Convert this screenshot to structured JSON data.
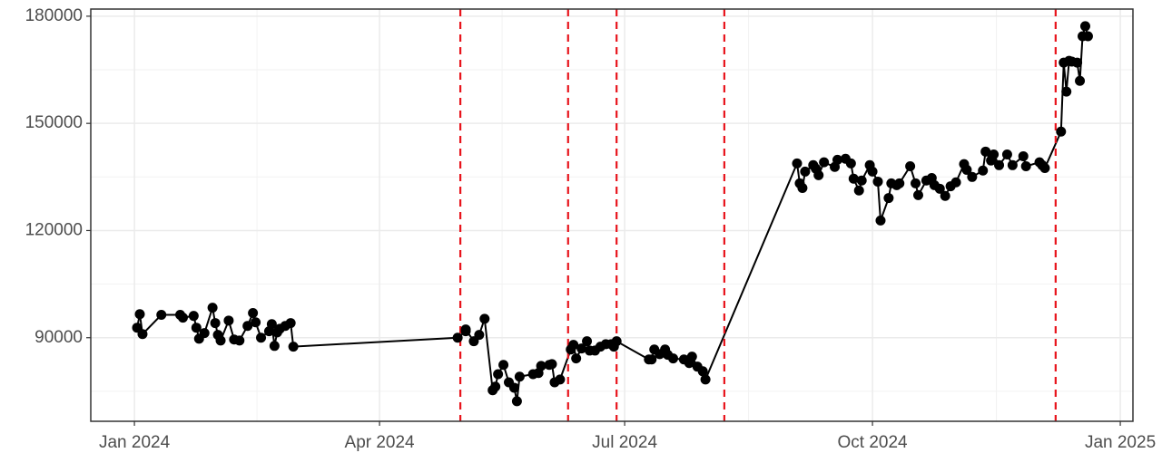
{
  "chart_data": {
    "type": "line",
    "x": [
      1,
      2,
      3,
      10,
      17,
      18,
      22,
      23,
      24,
      26,
      29,
      30,
      31,
      32,
      35,
      37,
      39,
      42,
      44,
      45,
      47,
      50,
      51,
      52,
      53,
      54,
      56,
      58,
      59,
      120,
      123,
      123,
      126,
      128,
      130,
      133,
      134,
      135,
      137,
      139,
      141,
      142,
      143,
      148,
      150,
      151,
      154,
      155,
      156,
      158,
      162,
      163,
      164,
      166,
      168,
      169,
      171,
      173,
      175,
      177,
      178,
      179,
      191,
      192,
      193,
      195,
      197,
      198,
      200,
      204,
      206,
      207,
      209,
      211,
      212,
      246,
      247,
      248,
      249,
      252,
      253,
      254,
      256,
      260,
      261,
      264,
      266,
      267,
      269,
      270,
      273,
      274,
      276,
      277,
      280,
      281,
      283,
      284,
      288,
      290,
      291,
      294,
      296,
      297,
      299,
      301,
      303,
      305,
      308,
      309,
      311,
      315,
      316,
      318,
      319,
      321,
      324,
      326,
      330,
      331,
      336,
      337,
      338,
      344,
      345,
      346,
      347,
      348,
      350,
      351,
      352,
      353,
      354
    ],
    "values": [
      92800,
      96600,
      91000,
      96400,
      96400,
      95600,
      96100,
      92800,
      89700,
      91300,
      98400,
      94100,
      90800,
      89200,
      94800,
      89500,
      89200,
      93300,
      96900,
      94300,
      90000,
      91800,
      93800,
      87700,
      91500,
      92500,
      93300,
      94100,
      87500,
      90000,
      91800,
      92300,
      89000,
      90800,
      95300,
      75300,
      76300,
      79800,
      82400,
      77500,
      76000,
      72200,
      79100,
      79800,
      80100,
      82100,
      82400,
      82600,
      77500,
      78300,
      86700,
      88000,
      84200,
      87000,
      89000,
      86400,
      86400,
      87500,
      88200,
      88200,
      87500,
      89000,
      83900,
      83900,
      86700,
      85400,
      86700,
      85200,
      84200,
      83900,
      82900,
      84700,
      81900,
      80600,
      78300,
      138800,
      133200,
      131900,
      136500,
      138300,
      137300,
      135500,
      139100,
      137800,
      139800,
      140100,
      138800,
      134500,
      131200,
      134000,
      138300,
      136500,
      133700,
      122800,
      129100,
      133200,
      132700,
      133200,
      138000,
      133200,
      129900,
      134000,
      134700,
      132700,
      131700,
      129700,
      132400,
      133500,
      138600,
      137000,
      135000,
      136800,
      142100,
      139600,
      141300,
      138300,
      141300,
      138300,
      140800,
      138000,
      139100,
      138300,
      137500,
      147700,
      167000,
      158900,
      167500,
      167300,
      167000,
      161900,
      174400,
      177200,
      174400
    ],
    "color": "#000000",
    "vlines": [
      121,
      161,
      179,
      219,
      342
    ],
    "vline_color": "#e8141c",
    "xlim": [
      -16.2,
      370.7
    ],
    "xticks": [
      {
        "value": 0,
        "label": "Jan 2024"
      },
      {
        "value": 91,
        "label": "Apr 2024"
      },
      {
        "value": 182,
        "label": "Jul 2024"
      },
      {
        "value": 274,
        "label": "Oct 2024"
      },
      {
        "value": 366,
        "label": "Jan 2025"
      }
    ],
    "ylim": [
      66600,
      182000
    ],
    "yticks": [
      90000,
      120000,
      150000,
      180000
    ],
    "grid": true
  }
}
